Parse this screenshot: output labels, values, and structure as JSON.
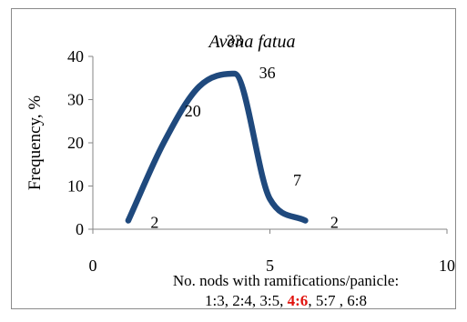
{
  "chart_data": {
    "type": "line",
    "title": "Avena fatua",
    "ylabel": "Frequency, %",
    "xlabel": "No. nods with ramifications/panicle:",
    "xlabel_detail": [
      {
        "text": "1:3, 2:4, 3:5, ",
        "highlight": false
      },
      {
        "text": "4:6",
        "highlight": true
      },
      {
        "text": ", 5:7 , 6:8",
        "highlight": false
      }
    ],
    "xlim": [
      0,
      10
    ],
    "ylim": [
      0,
      40
    ],
    "xticks": [
      0,
      5,
      10
    ],
    "yticks": [
      0,
      10,
      20,
      30,
      40
    ],
    "grid": false,
    "series": [
      {
        "color": "#1f497d",
        "smooth": true,
        "points": [
          {
            "x": 1,
            "y": 2,
            "label": "2"
          },
          {
            "x": 2,
            "y": 20,
            "label": "20"
          },
          {
            "x": 3,
            "y": 33,
            "label": "33"
          },
          {
            "x": 4,
            "y": 36,
            "label": "36"
          },
          {
            "x": 5,
            "y": 7,
            "label": "7"
          },
          {
            "x": 6,
            "y": 2,
            "label": "2"
          }
        ]
      }
    ]
  }
}
